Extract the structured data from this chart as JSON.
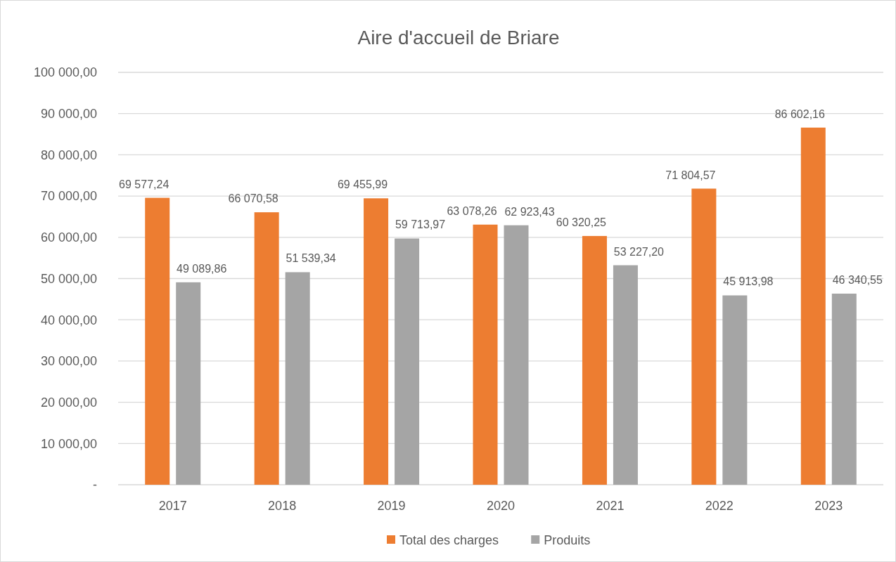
{
  "chart_data": {
    "type": "bar",
    "title": "Aire d'accueil de Briare",
    "categories": [
      "2017",
      "2018",
      "2019",
      "2020",
      "2021",
      "2022",
      "2023"
    ],
    "series": [
      {
        "name": "Total des charges",
        "color": "#ed7d31",
        "values": [
          69577.24,
          66070.58,
          69455.99,
          63078.26,
          60320.25,
          71804.57,
          86602.16
        ],
        "value_labels": [
          "69 577,24",
          "66 070,58",
          "69 455,99",
          "63 078,26",
          "60 320,25",
          "71 804,57",
          "86 602,16"
        ]
      },
      {
        "name": "Produits",
        "color": "#a5a5a5",
        "values": [
          49089.86,
          51539.34,
          59713.97,
          62923.43,
          53227.2,
          45913.98,
          46340.55
        ],
        "value_labels": [
          "49 089,86",
          "51 539,34",
          "59 713,97",
          "62 923,43",
          "53 227,20",
          "45 913,98",
          "46 340,55"
        ]
      }
    ],
    "ylim": [
      0,
      100000
    ],
    "yticks": [
      {
        "value": 0,
        "label": "-"
      },
      {
        "value": 10000,
        "label": "10 000,00"
      },
      {
        "value": 20000,
        "label": "20 000,00"
      },
      {
        "value": 30000,
        "label": "30 000,00"
      },
      {
        "value": 40000,
        "label": "40 000,00"
      },
      {
        "value": 50000,
        "label": "50 000,00"
      },
      {
        "value": 60000,
        "label": "60 000,00"
      },
      {
        "value": 70000,
        "label": "70 000,00"
      },
      {
        "value": 80000,
        "label": "80 000,00"
      },
      {
        "value": 90000,
        "label": "90 000,00"
      },
      {
        "value": 100000,
        "label": "100 000,00"
      }
    ],
    "grid": "y",
    "legend": "bottom"
  }
}
